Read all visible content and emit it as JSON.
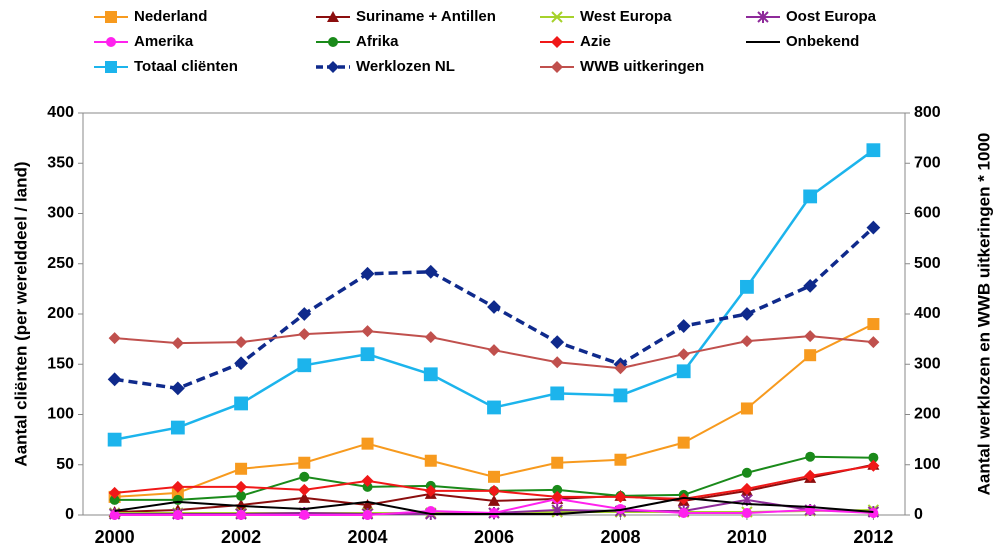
{
  "chart_data": {
    "type": "line",
    "y_label": "Aantal cliënten (per werelddeel / land)",
    "y2_label": "Aantal werklozen en WWB uitkeringen * 1000",
    "x": [
      2000,
      2001,
      2002,
      2003,
      2004,
      2005,
      2006,
      2007,
      2008,
      2009,
      2010,
      2011,
      2012
    ],
    "xlim": [
      1999.5,
      2012.5
    ],
    "xticks": [
      2000,
      2002,
      2004,
      2006,
      2008,
      2010,
      2012
    ],
    "ylim": [
      0,
      400
    ],
    "yticks": [
      0,
      50,
      100,
      150,
      200,
      250,
      300,
      350,
      400
    ],
    "y2lim": [
      0,
      800
    ],
    "y2ticks": [
      0,
      100,
      200,
      300,
      400,
      500,
      600,
      700,
      800
    ],
    "grid": false,
    "legend": "top",
    "series": [
      {
        "name": "Nederland",
        "color": "#f79a1e",
        "marker": "square",
        "values": [
          18,
          22,
          46,
          52,
          71,
          54,
          38,
          52,
          55,
          72,
          106,
          159,
          190
        ]
      },
      {
        "name": "Suriname + Antillen",
        "color": "#8b0e0e",
        "marker": "triangle",
        "values": [
          3,
          5,
          10,
          17,
          10,
          21,
          14,
          16,
          19,
          14,
          24,
          37,
          50
        ]
      },
      {
        "name": "West Europa",
        "color": "#a6d22b",
        "marker": "x",
        "values": [
          2,
          2,
          2,
          2,
          2,
          2,
          2,
          3,
          3,
          3,
          3,
          4,
          5
        ]
      },
      {
        "name": "Oost Europa",
        "color": "#8e2a9a",
        "marker": "star",
        "values": [
          1,
          1,
          1,
          2,
          1,
          1,
          2,
          5,
          4,
          4,
          15,
          5,
          3
        ]
      },
      {
        "name": "Amerika",
        "color": "#ff22ee",
        "marker": "circle",
        "values": [
          0,
          0,
          0,
          0,
          0,
          4,
          2,
          16,
          6,
          2,
          2,
          5,
          2
        ]
      },
      {
        "name": "Afrika",
        "color": "#1a8a1a",
        "marker": "circle",
        "values": [
          15,
          15,
          19,
          38,
          28,
          29,
          24,
          25,
          19,
          20,
          42,
          58,
          57
        ]
      },
      {
        "name": "Azie",
        "color": "#f01818",
        "marker": "diamond",
        "values": [
          22,
          28,
          28,
          25,
          34,
          24,
          24,
          18,
          18,
          16,
          26,
          39,
          49
        ]
      },
      {
        "name": "Onbekend",
        "color": "#000000",
        "marker": "none",
        "values": [
          4,
          13,
          9,
          6,
          13,
          1,
          1,
          1,
          5,
          17,
          11,
          8,
          3
        ]
      },
      {
        "name": "Totaal cliënten",
        "color": "#1cb4ec",
        "marker": "square",
        "values": [
          75,
          87,
          111,
          149,
          160,
          140,
          107,
          121,
          119,
          143,
          227,
          317,
          363
        ]
      },
      {
        "name": "Werklozen NL",
        "color": "#0f2a8c",
        "marker": "diamond",
        "dash": true,
        "axis": "y2",
        "values": [
          270,
          252,
          302,
          400,
          480,
          484,
          414,
          344,
          300,
          376,
          400,
          456,
          572
        ]
      },
      {
        "name": "WWB uitkeringen",
        "color": "#c0504d",
        "marker": "diamond",
        "axis": "y2",
        "values": [
          352,
          342,
          344,
          360,
          366,
          354,
          328,
          304,
          292,
          320,
          346,
          356,
          344
        ]
      }
    ]
  }
}
